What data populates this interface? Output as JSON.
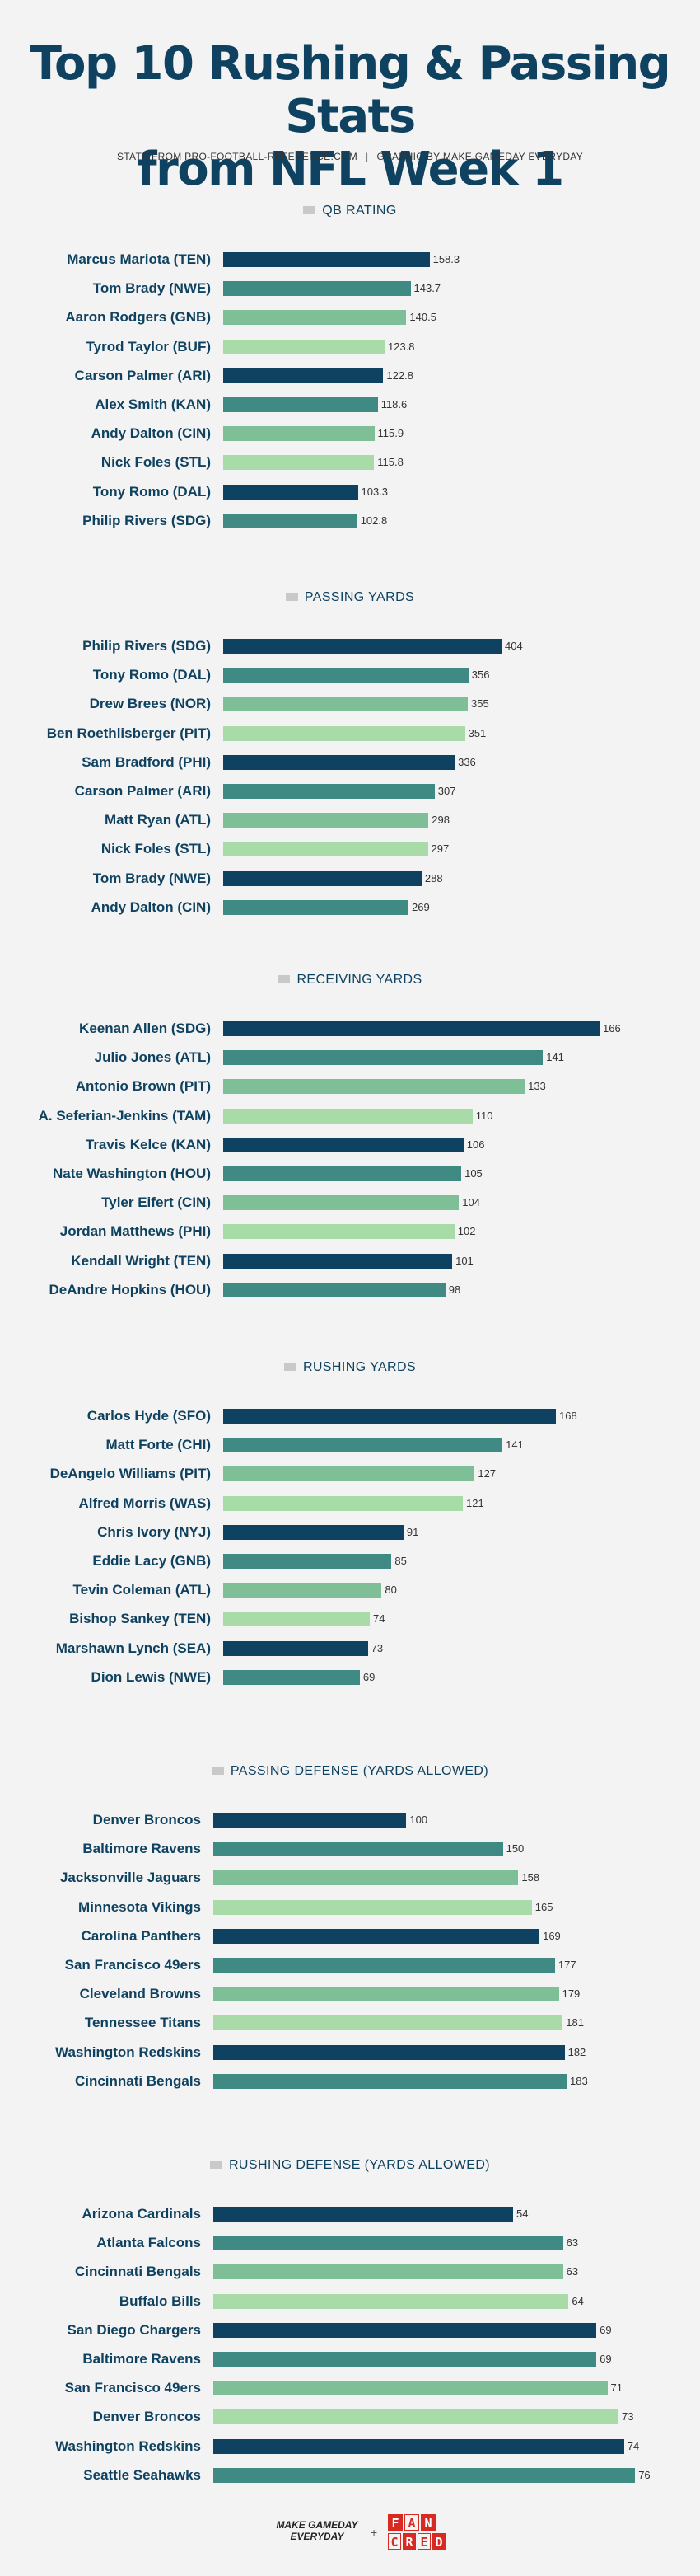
{
  "header": {
    "title_line1": "Top 10 Rushing & Passing Stats",
    "title_line2": "from NFL Week 1",
    "credit_left": "STATS FROM PRO-FOOTBALL-REFERENCE.COM",
    "credit_sep": "|",
    "credit_right": "GRAPHIC BY MAKE GAMEDAY EVERYDAY"
  },
  "colors": [
    "#0f4260",
    "#3f8a82",
    "#7ebf98",
    "#a8dba8"
  ],
  "chart_data": [
    {
      "type": "bar",
      "orientation": "horizontal",
      "title": "QB RATING",
      "categories": [
        "Marcus Mariota (TEN)",
        "Tom Brady (NWE)",
        "Aaron Rodgers (GNB)",
        "Tyrod Taylor (BUF)",
        "Carson Palmer (ARI)",
        "Alex Smith (KAN)",
        "Andy Dalton (CIN)",
        "Nick Foles (STL)",
        "Tony Romo (DAL)",
        "Philip Rivers (SDG)"
      ],
      "values": [
        158.3,
        143.7,
        140.5,
        123.8,
        122.8,
        118.6,
        115.9,
        115.8,
        103.3,
        102.8
      ],
      "value_labels": [
        "158.3",
        "143.7",
        "140.5",
        "123.8",
        "122.8",
        "118.6",
        "115.9",
        "115.8",
        "103.3",
        "102.8"
      ]
    },
    {
      "type": "bar",
      "orientation": "horizontal",
      "title": "PASSING YARDS",
      "categories": [
        "Philip Rivers (SDG)",
        "Tony Romo (DAL)",
        "Drew Brees (NOR)",
        "Ben Roethlisberger (PIT)",
        "Sam Bradford (PHI)",
        "Carson Palmer (ARI)",
        "Matt Ryan (ATL)",
        "Nick Foles (STL)",
        "Tom Brady (NWE)",
        "Andy Dalton (CIN)"
      ],
      "values": [
        404,
        356,
        355,
        351,
        336,
        307,
        298,
        297,
        288,
        269
      ],
      "value_labels": [
        "404",
        "356",
        "355",
        "351",
        "336",
        "307",
        "298",
        "297",
        "288",
        "269"
      ]
    },
    {
      "type": "bar",
      "orientation": "horizontal",
      "title": "RECEIVING YARDS",
      "categories": [
        "Keenan Allen (SDG)",
        "Julio Jones (ATL)",
        "Antonio Brown (PIT)",
        "A. Seferian-Jenkins (TAM)",
        "Travis Kelce (KAN)",
        "Nate Washington (HOU)",
        "Tyler Eifert (CIN)",
        "Jordan Matthews (PHI)",
        "Kendall Wright (TEN)",
        "DeAndre Hopkins (HOU)"
      ],
      "values": [
        166,
        141,
        133,
        110,
        106,
        105,
        104,
        102,
        101,
        98
      ],
      "value_labels": [
        "166",
        "141",
        "133",
        "110",
        "106",
        "105",
        "104",
        "102",
        "101",
        "98"
      ]
    },
    {
      "type": "bar",
      "orientation": "horizontal",
      "title": "RUSHING YARDS",
      "categories": [
        "Carlos Hyde (SFO)",
        "Matt Forte (CHI)",
        "DeAngelo Williams (PIT)",
        "Alfred Morris (WAS)",
        "Chris Ivory (NYJ)",
        "Eddie Lacy (GNB)",
        "Tevin Coleman (ATL)",
        "Bishop Sankey (TEN)",
        "Marshawn Lynch (SEA)",
        "Dion Lewis (NWE)"
      ],
      "values": [
        168,
        141,
        127,
        121,
        91,
        85,
        80,
        74,
        73,
        69
      ],
      "value_labels": [
        "168",
        "141",
        "127",
        "121",
        "91",
        "85",
        "80",
        "74",
        "73",
        "69"
      ]
    },
    {
      "type": "bar",
      "orientation": "horizontal",
      "title": "PASSING DEFENSE (YARDS ALLOWED)",
      "categories": [
        "Denver Broncos",
        "Baltimore Ravens",
        "Jacksonville Jaguars",
        "Minnesota Vikings",
        "Carolina Panthers",
        "San Francisco 49ers",
        "Cleveland Browns",
        "Tennessee Titans",
        "Washington Redskins",
        "Cincinnati Bengals"
      ],
      "values": [
        100,
        150,
        158,
        165,
        169,
        177,
        179,
        181,
        182,
        183
      ],
      "value_labels": [
        "100",
        "150",
        "158",
        "165",
        "169",
        "177",
        "179",
        "181",
        "182",
        "183"
      ]
    },
    {
      "type": "bar",
      "orientation": "horizontal",
      "title": "RUSHING DEFENSE (YARDS ALLOWED)",
      "categories": [
        "Arizona Cardinals",
        "Atlanta Falcons",
        "Cincinnati Bengals",
        "Buffalo Bills",
        "San Diego Chargers",
        "Baltimore Ravens",
        "San Francisco 49ers",
        "Denver Broncos",
        "Washington Redskins",
        "Seattle Seahawks"
      ],
      "values": [
        54,
        63,
        63,
        64,
        69,
        69,
        71,
        73,
        74,
        76
      ],
      "value_labels": [
        "54",
        "63",
        "63",
        "64",
        "69",
        "69",
        "71",
        "73",
        "74",
        "76"
      ]
    }
  ],
  "footer": {
    "brand_line1": "MAKE GAMEDAY",
    "brand_line2": "EVERYDAY",
    "plus": "+",
    "partner_row1": [
      "F",
      "A",
      "N"
    ],
    "partner_row2": [
      "C",
      "R",
      "E",
      "D"
    ]
  }
}
